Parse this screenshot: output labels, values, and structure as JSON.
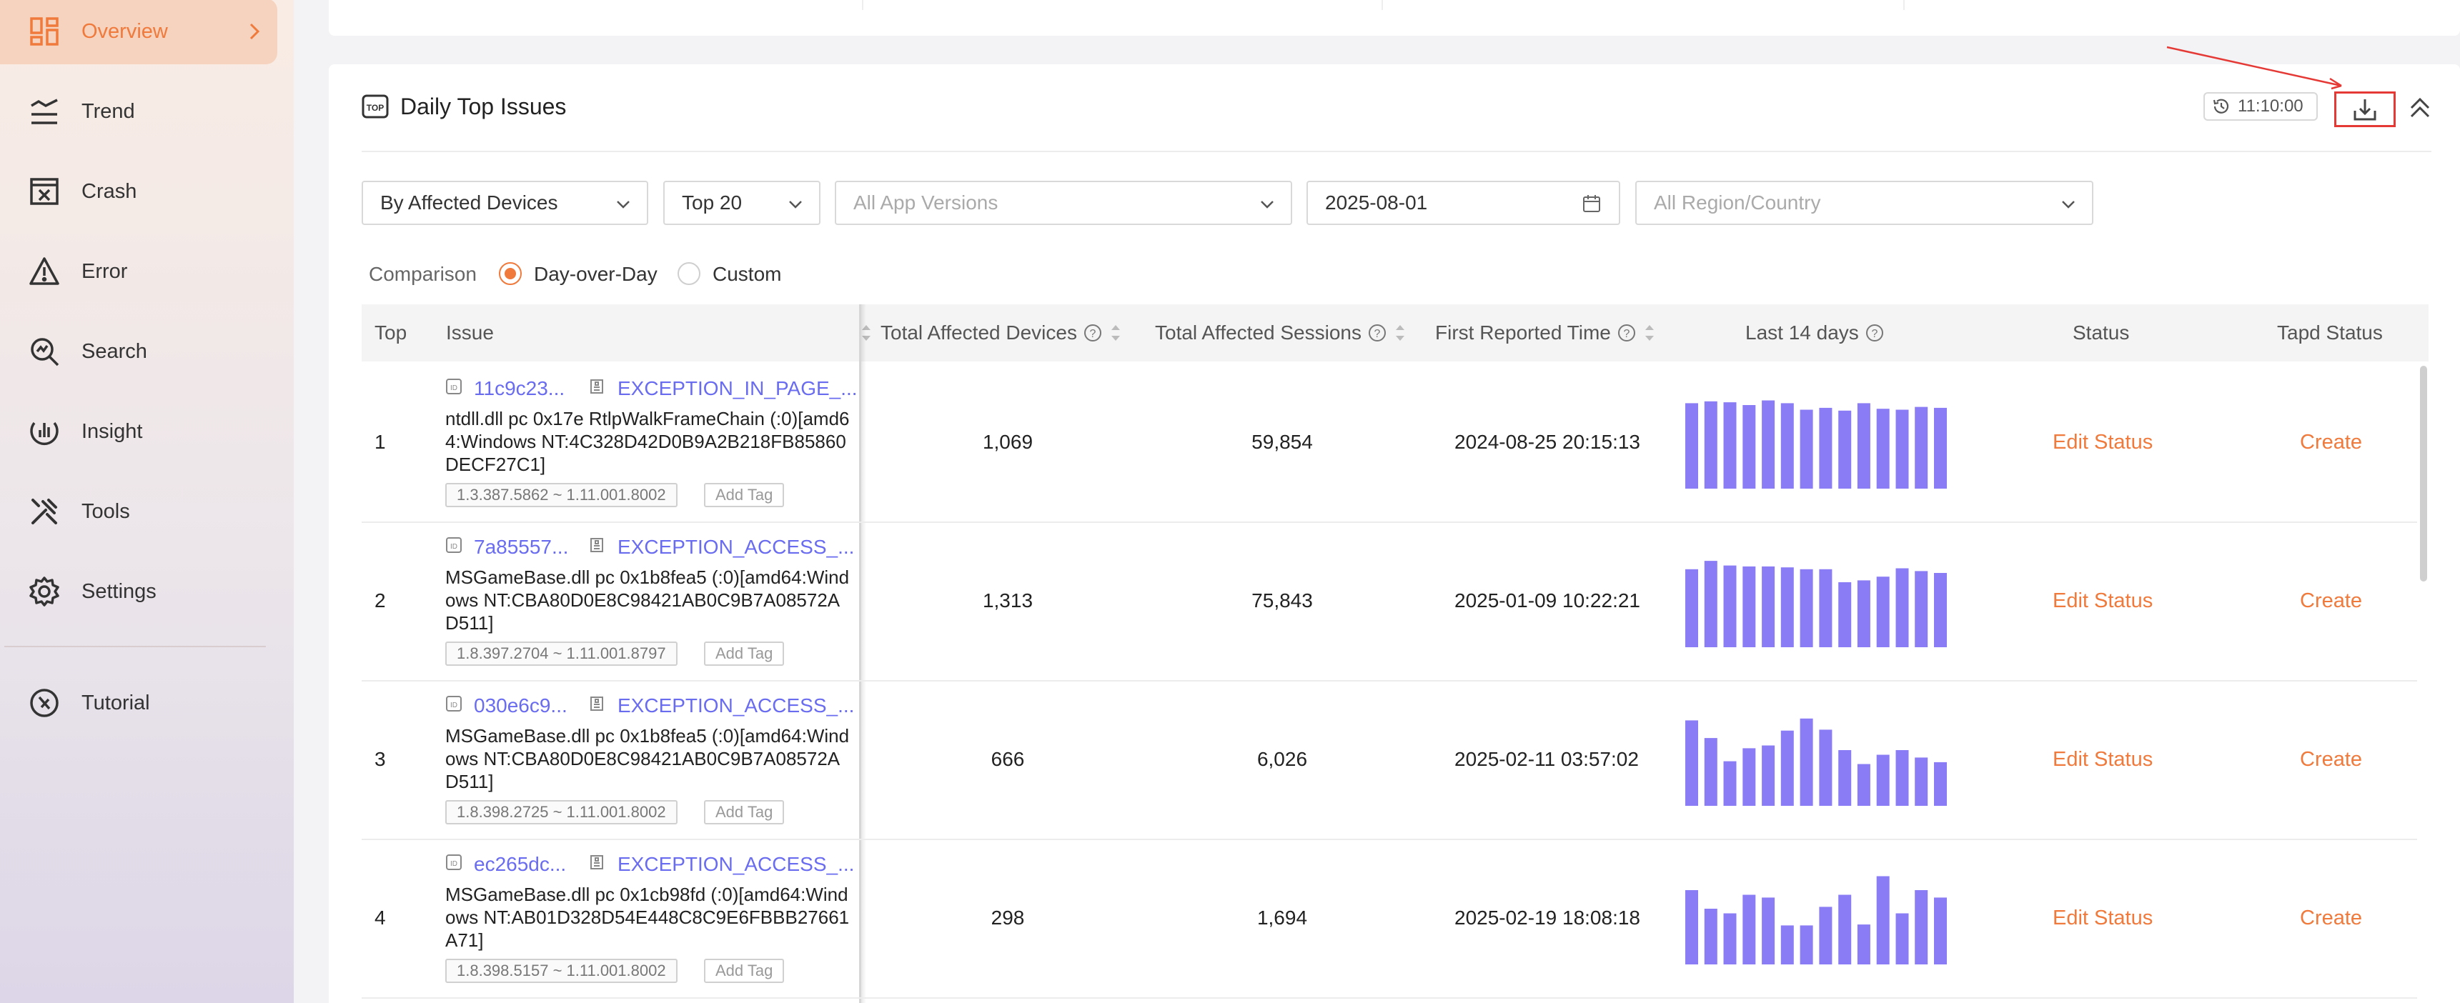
{
  "sidebar": {
    "items": [
      {
        "label": "Overview",
        "icon": "dashboard-icon",
        "active": true
      },
      {
        "label": "Trend",
        "icon": "trend-icon"
      },
      {
        "label": "Crash",
        "icon": "crash-icon"
      },
      {
        "label": "Error",
        "icon": "warning-icon"
      },
      {
        "label": "Search",
        "icon": "search-icon"
      },
      {
        "label": "Insight",
        "icon": "insight-icon"
      },
      {
        "label": "Tools",
        "icon": "tools-icon"
      },
      {
        "label": "Settings",
        "icon": "gear-icon"
      },
      {
        "label": "Tutorial",
        "icon": "compass-icon"
      }
    ]
  },
  "panel": {
    "title": "Daily Top Issues",
    "time": "11:10:00"
  },
  "filters": {
    "sort_by": "By Affected Devices",
    "top_n": "Top 20",
    "app_versions_placeholder": "All App Versions",
    "date": "2025-08-01",
    "region_placeholder": "All Region/Country"
  },
  "comparison": {
    "label": "Comparison",
    "options": [
      "Day-over-Day",
      "Custom"
    ],
    "selected": "Day-over-Day"
  },
  "table": {
    "columns": {
      "top": "Top",
      "issue": "Issue",
      "devices": "Total Affected Devices",
      "sessions": "Total Affected Sessions",
      "first_reported": "First Reported Time",
      "last14": "Last 14 days",
      "status": "Status",
      "tapd": "Tapd Status"
    },
    "add_tag_label": "Add Tag",
    "edit_status_label": "Edit Status",
    "create_label": "Create",
    "rows": [
      {
        "rank": "1",
        "id": "11c9c23...",
        "type": "EXCEPTION_IN_PAGE_...",
        "stack": "ntdll.dll pc 0x17e RtlpWalkFrameChain (:0)[amd64:Windows NT:4C328D42D0B9A2B218FB85860DECF27C1]",
        "versions": "1.3.387.5862 ~ 1.11.001.8002",
        "devices": "1,069",
        "sessions": "59,854",
        "first_reported": "2024-08-25 20:15:13",
        "trend": [
          0.92,
          0.94,
          0.93,
          0.9,
          0.95,
          0.92,
          0.85,
          0.87,
          0.84,
          0.92,
          0.86,
          0.85,
          0.88,
          0.87
        ]
      },
      {
        "rank": "2",
        "id": "7a85557...",
        "type": "EXCEPTION_ACCESS_...",
        "stack": "MSGameBase.dll pc 0x1b8fea5 (:0)[amd64:Windows NT:CBA80D0E8C98421AB0C9B7A08572AD511]",
        "versions": "1.8.397.2704 ~ 1.11.001.8797",
        "devices": "1,313",
        "sessions": "75,843",
        "first_reported": "2025-01-09 10:22:21",
        "trend": [
          0.84,
          0.93,
          0.88,
          0.87,
          0.87,
          0.86,
          0.84,
          0.84,
          0.7,
          0.72,
          0.76,
          0.85,
          0.82,
          0.8
        ]
      },
      {
        "rank": "3",
        "id": "030e6c9...",
        "type": "EXCEPTION_ACCESS_...",
        "stack": "MSGameBase.dll pc 0x1b8fea5 (:0)[amd64:Windows NT:CBA80D0E8C98421AB0C9B7A08572AD511]",
        "versions": "1.8.398.2725 ~ 1.11.001.8002",
        "devices": "666",
        "sessions": "6,026",
        "first_reported": "2025-02-11 03:57:02",
        "trend": [
          0.92,
          0.73,
          0.48,
          0.62,
          0.65,
          0.81,
          0.94,
          0.82,
          0.6,
          0.45,
          0.55,
          0.6,
          0.52,
          0.47
        ]
      },
      {
        "rank": "4",
        "id": "ec265dc...",
        "type": "EXCEPTION_ACCESS_...",
        "stack": "MSGameBase.dll pc 0x1cb98fd (:0)[amd64:Windows NT:AB01D328D54E448C8C9E6FBBB27661A71]",
        "versions": "1.8.398.5157 ~ 1.11.001.8002",
        "devices": "298",
        "sessions": "1,694",
        "first_reported": "2025-02-19 18:08:18",
        "trend": [
          0.8,
          0.6,
          0.55,
          0.75,
          0.72,
          0.42,
          0.42,
          0.62,
          0.75,
          0.43,
          0.95,
          0.55,
          0.8,
          0.72
        ]
      }
    ]
  },
  "colors": {
    "accent": "#f07a3c",
    "link": "#6a6cf0",
    "bar": "#8a7cf4"
  }
}
